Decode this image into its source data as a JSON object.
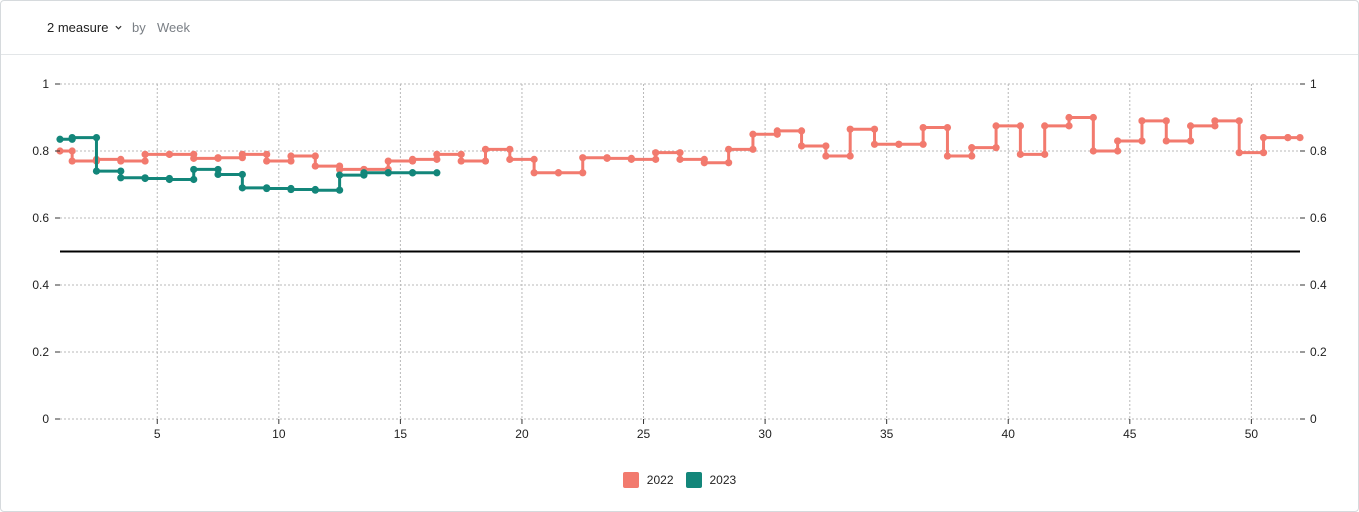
{
  "toolbar": {
    "measure_label": "2 measure",
    "by_label": "by",
    "groupby_label": "Week",
    "chevron_icon": "chevron-down-icon"
  },
  "colors": {
    "s2022": "#f27a6e",
    "s2023": "#13867a",
    "grid": "#b8b8b8",
    "reference": "#000000"
  },
  "chart_data": {
    "type": "line",
    "step": true,
    "title": "",
    "xlabel": "",
    "ylabel": "",
    "xlim": [
      1,
      52
    ],
    "ylim": [
      0,
      1
    ],
    "x_ticks": [
      5,
      10,
      15,
      20,
      25,
      30,
      35,
      40,
      45,
      50
    ],
    "y_ticks": [
      0,
      0.2,
      0.4,
      0.6,
      0.8,
      1
    ],
    "y_tick_labels": [
      "0",
      "0.2",
      "0.4",
      "0.6",
      "0.8",
      "1"
    ],
    "reference_line": 0.5,
    "grid": true,
    "secondary_y_axis": true,
    "legend_position": "bottom",
    "series": [
      {
        "name": "2022",
        "color": "#f27a6e",
        "x": [
          1,
          2,
          3,
          4,
          5,
          6,
          7,
          8,
          9,
          10,
          11,
          12,
          13,
          14,
          15,
          16,
          17,
          18,
          19,
          20,
          21,
          22,
          23,
          24,
          25,
          26,
          27,
          28,
          29,
          30,
          31,
          32,
          33,
          34,
          35,
          36,
          37,
          38,
          39,
          40,
          41,
          42,
          43,
          44,
          45,
          46,
          47,
          48,
          49,
          50,
          51,
          52
        ],
        "values": [
          0.8,
          0.77,
          0.775,
          0.77,
          0.79,
          0.79,
          0.778,
          0.78,
          0.79,
          0.77,
          0.785,
          0.755,
          0.745,
          0.745,
          0.77,
          0.775,
          0.79,
          0.77,
          0.805,
          0.775,
          0.735,
          0.735,
          0.78,
          0.778,
          0.775,
          0.795,
          0.775,
          0.765,
          0.805,
          0.85,
          0.86,
          0.815,
          0.785,
          0.865,
          0.82,
          0.82,
          0.87,
          0.785,
          0.81,
          0.875,
          0.79,
          0.875,
          0.9,
          0.8,
          0.83,
          0.89,
          0.83,
          0.875,
          0.89,
          0.795,
          0.84,
          0.84
        ]
      },
      {
        "name": "2023",
        "color": "#13867a",
        "x": [
          1,
          2,
          3,
          4,
          5,
          6,
          7,
          8,
          9,
          10,
          11,
          12,
          13,
          14,
          15,
          16
        ],
        "values": [
          0.835,
          0.84,
          0.74,
          0.72,
          0.718,
          0.715,
          0.745,
          0.73,
          0.69,
          0.688,
          0.685,
          0.683,
          0.728,
          0.735,
          0.735,
          0.735
        ]
      }
    ]
  }
}
